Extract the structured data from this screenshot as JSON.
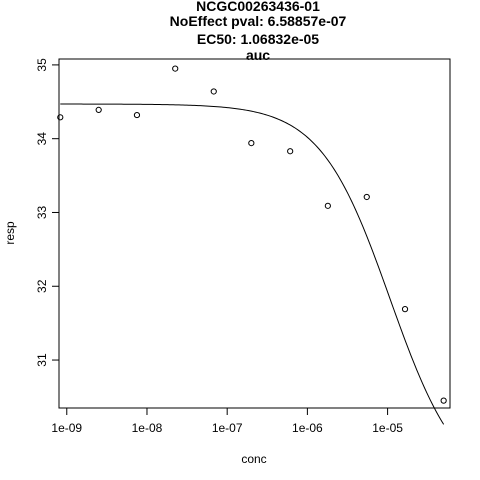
{
  "chart_data": {
    "type": "scatter",
    "title_lines": [
      "NCGC00263436-01",
      "NoEffect pval:  6.58857e-07",
      "EC50:  1.06832e-05",
      "auc"
    ],
    "xlabel": "conc",
    "ylabel": "resp",
    "x_scale": "log10",
    "xlim": [
      8e-10,
      6e-05
    ],
    "ylim": [
      30.35,
      35.08
    ],
    "x_ticks": [
      1e-09,
      1e-08,
      1e-07,
      1e-06,
      1e-05
    ],
    "x_tick_labels": [
      "1e-09",
      "1e-08",
      "1e-07",
      "1e-06",
      "1e-05"
    ],
    "y_ticks": [
      31,
      32,
      33,
      34,
      35
    ],
    "y_tick_labels": [
      "31",
      "32",
      "33",
      "34",
      "35"
    ],
    "grid": false,
    "points": {
      "x": [
        8.3e-10,
        2.5e-09,
        7.5e-09,
        2.25e-08,
        6.8e-08,
        2e-07,
        6.1e-07,
        1.8e-06,
        5.5e-06,
        1.65e-05,
        5e-05
      ],
      "y": [
        34.29,
        34.39,
        34.32,
        34.95,
        34.64,
        33.94,
        33.83,
        33.09,
        33.21,
        31.69,
        30.45
      ]
    },
    "fit_curve": {
      "model": "hill",
      "top": 34.47,
      "bottom": 29.2,
      "ec50": 1.06832e-05,
      "slope": 1.0,
      "x_range": [
        8.3e-10,
        5e-05
      ]
    }
  }
}
